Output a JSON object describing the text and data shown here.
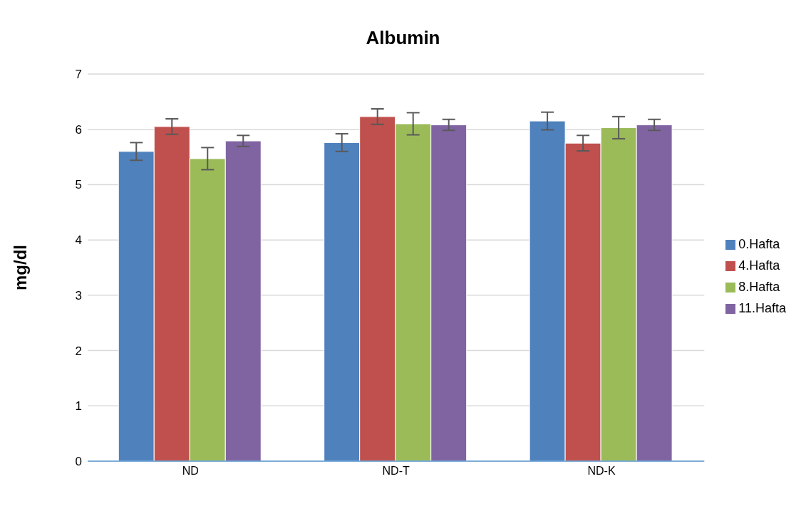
{
  "chart_data": {
    "type": "bar",
    "title": "Albumin",
    "ylabel": "mg/dl",
    "categories": [
      "ND",
      "ND-T",
      "ND-K"
    ],
    "series": [
      {
        "name": "0.Hafta",
        "color": "#4f81bd",
        "values": [
          5.6,
          5.76,
          6.15
        ],
        "errors": [
          0.16,
          0.16,
          0.16
        ]
      },
      {
        "name": "4.Hafta",
        "color": "#c0504d",
        "values": [
          6.05,
          6.23,
          5.75
        ],
        "errors": [
          0.14,
          0.14,
          0.14
        ]
      },
      {
        "name": "8.Hafta",
        "color": "#9bbb59",
        "values": [
          5.47,
          6.1,
          6.03
        ],
        "errors": [
          0.2,
          0.2,
          0.2
        ]
      },
      {
        "name": "11.Hafta",
        "color": "#8064a2",
        "values": [
          5.79,
          6.08,
          6.08
        ],
        "errors": [
          0.1,
          0.1,
          0.1
        ]
      }
    ],
    "ylim": [
      0,
      7
    ],
    "yticks": [
      0,
      1,
      2,
      3,
      4,
      5,
      6,
      7
    ],
    "grid": "y",
    "legend": "right"
  }
}
